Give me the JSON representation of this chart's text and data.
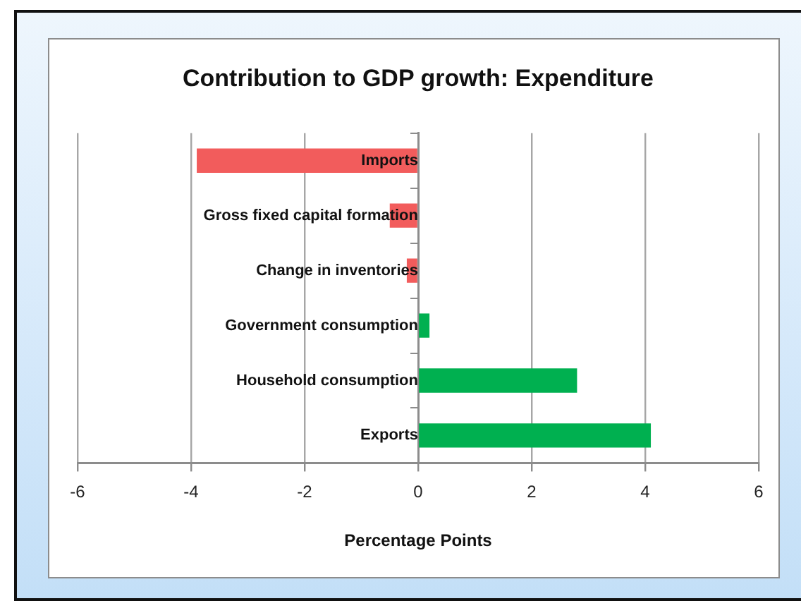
{
  "chart_data": {
    "type": "bar",
    "orientation": "horizontal",
    "title": "Contribution to GDP growth: Expenditure",
    "xlabel": "Percentage Points",
    "categories": [
      "Imports",
      "Gross fixed capital formation",
      "Change in inventories",
      "Government consumption",
      "Household consumption",
      "Exports"
    ],
    "values": [
      -3.9,
      -0.5,
      -0.2,
      0.2,
      2.8,
      4.1
    ],
    "colors": [
      "#f25c5c",
      "#f25c5c",
      "#f25c5c",
      "#00b050",
      "#00b050",
      "#00b050"
    ],
    "xlim": [
      -6,
      6
    ],
    "xticks": [
      -6,
      -4,
      -2,
      0,
      2,
      4,
      6
    ],
    "grid": "x",
    "legend": false
  }
}
